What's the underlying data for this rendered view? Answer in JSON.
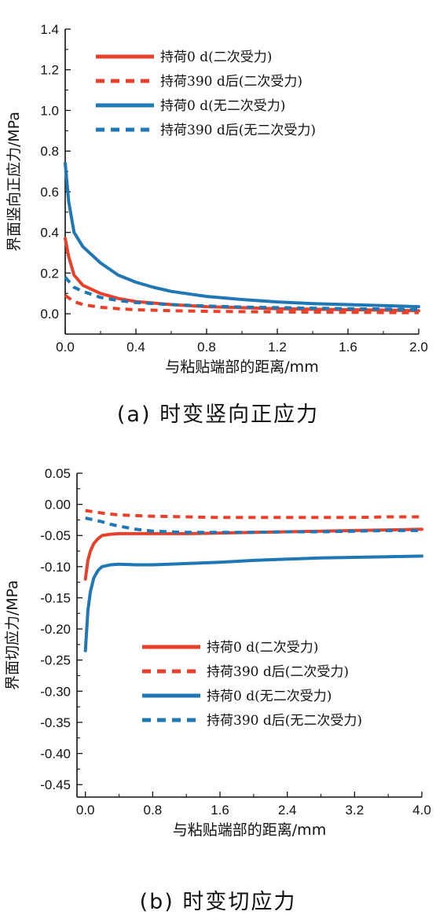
{
  "chart_data": [
    {
      "panel": "a",
      "type": "line",
      "caption": "(a) 时变竖向正应力",
      "xlabel": "与粘贴端部的距离/mm",
      "ylabel": "界面竖向正应力/MPa",
      "xlim": [
        0,
        2.0
      ],
      "ylim": [
        -0.1,
        1.4
      ],
      "xticks": [
        "0.0",
        "0.4",
        "0.8",
        "1.2",
        "1.6",
        "2.0"
      ],
      "yticks": [
        "0.0",
        "0.2",
        "0.4",
        "0.6",
        "0.8",
        "1.0",
        "1.2",
        "1.4"
      ],
      "grid": false,
      "legend_position": "top-right",
      "series": [
        {
          "name": "持荷0 d(二次受力)",
          "color": "#e8402a",
          "dash": "solid",
          "x": [
            0.0,
            0.02,
            0.05,
            0.1,
            0.2,
            0.3,
            0.4,
            0.6,
            0.8,
            1.0,
            1.2,
            1.4,
            1.6,
            1.8,
            2.0
          ],
          "y": [
            0.37,
            0.28,
            0.19,
            0.14,
            0.1,
            0.075,
            0.06,
            0.045,
            0.035,
            0.03,
            0.025,
            0.022,
            0.02,
            0.018,
            0.015
          ]
        },
        {
          "name": "持荷390 d后(二次受力)",
          "color": "#e8402a",
          "dash": "dashed",
          "x": [
            0.0,
            0.05,
            0.1,
            0.2,
            0.3,
            0.4,
            0.6,
            0.8,
            1.0,
            1.2,
            1.4,
            1.6,
            1.8,
            2.0
          ],
          "y": [
            0.09,
            0.06,
            0.045,
            0.032,
            0.025,
            0.02,
            0.015,
            0.012,
            0.01,
            0.009,
            0.008,
            0.007,
            0.006,
            0.005
          ]
        },
        {
          "name": "持荷0 d(无二次受力)",
          "color": "#1f77b4",
          "dash": "solid",
          "x": [
            0.0,
            0.02,
            0.05,
            0.1,
            0.2,
            0.3,
            0.4,
            0.5,
            0.6,
            0.8,
            1.0,
            1.2,
            1.4,
            1.6,
            1.8,
            2.0
          ],
          "y": [
            0.74,
            0.55,
            0.4,
            0.33,
            0.25,
            0.19,
            0.155,
            0.13,
            0.11,
            0.085,
            0.07,
            0.058,
            0.05,
            0.045,
            0.04,
            0.035
          ]
        },
        {
          "name": "持荷390 d后(无二次受力)",
          "color": "#1f77b4",
          "dash": "dashed",
          "x": [
            0.0,
            0.05,
            0.1,
            0.2,
            0.3,
            0.4,
            0.6,
            0.8,
            1.0,
            1.2,
            1.4,
            1.6,
            1.8,
            2.0
          ],
          "y": [
            0.18,
            0.13,
            0.11,
            0.08,
            0.065,
            0.055,
            0.045,
            0.038,
            0.033,
            0.03,
            0.027,
            0.025,
            0.023,
            0.02
          ]
        }
      ]
    },
    {
      "panel": "b",
      "type": "line",
      "caption": "(b) 时变切应力",
      "xlabel": "与粘贴端部的距离/mm",
      "ylabel": "界面切应力/MPa",
      "xlim": [
        -0.1,
        4.0
      ],
      "ylim": [
        -0.47,
        0.05
      ],
      "xticks": [
        "0.0",
        "0.8",
        "1.6",
        "2.4",
        "3.2",
        "4.0"
      ],
      "yticks": [
        "0.05",
        "0.00",
        "-0.05",
        "-0.10",
        "-0.15",
        "-0.20",
        "-0.25",
        "-0.30",
        "-0.35",
        "-0.40",
        "-0.45"
      ],
      "grid": false,
      "legend_position": "center-right",
      "series": [
        {
          "name": "持荷0 d(二次受力)",
          "color": "#e8402a",
          "dash": "solid",
          "x": [
            0.0,
            0.03,
            0.06,
            0.1,
            0.15,
            0.2,
            0.3,
            0.4,
            0.6,
            0.8,
            1.2,
            1.6,
            2.0,
            2.4,
            2.8,
            3.2,
            3.6,
            4.0
          ],
          "y": [
            -0.12,
            -0.09,
            -0.075,
            -0.063,
            -0.055,
            -0.05,
            -0.048,
            -0.047,
            -0.047,
            -0.047,
            -0.047,
            -0.046,
            -0.045,
            -0.044,
            -0.043,
            -0.042,
            -0.041,
            -0.04
          ]
        },
        {
          "name": "持荷390 d后(二次受力)",
          "color": "#e8402a",
          "dash": "dashed",
          "x": [
            0.0,
            0.1,
            0.2,
            0.4,
            0.6,
            0.8,
            1.2,
            1.6,
            2.0,
            2.4,
            2.8,
            3.2,
            3.6,
            4.0
          ],
          "y": [
            -0.01,
            -0.012,
            -0.014,
            -0.017,
            -0.018,
            -0.019,
            -0.02,
            -0.021,
            -0.021,
            -0.021,
            -0.021,
            -0.021,
            -0.02,
            -0.02
          ]
        },
        {
          "name": "持荷0 d(无二次受力)",
          "color": "#1f77b4",
          "dash": "solid",
          "x": [
            0.0,
            0.03,
            0.06,
            0.1,
            0.15,
            0.2,
            0.3,
            0.4,
            0.6,
            0.8,
            1.0,
            1.2,
            1.6,
            2.0,
            2.4,
            2.8,
            3.2,
            3.6,
            4.0
          ],
          "y": [
            -0.235,
            -0.17,
            -0.14,
            -0.118,
            -0.106,
            -0.1,
            -0.097,
            -0.096,
            -0.097,
            -0.097,
            -0.096,
            -0.095,
            -0.093,
            -0.09,
            -0.088,
            -0.086,
            -0.085,
            -0.084,
            -0.083
          ]
        },
        {
          "name": "持荷390 d后(无二次受力)",
          "color": "#1f77b4",
          "dash": "dashed",
          "x": [
            0.0,
            0.1,
            0.2,
            0.3,
            0.4,
            0.6,
            0.8,
            1.0,
            1.2,
            1.6,
            2.0,
            2.4,
            2.8,
            3.2,
            3.6,
            4.0
          ],
          "y": [
            -0.022,
            -0.025,
            -0.028,
            -0.032,
            -0.035,
            -0.04,
            -0.043,
            -0.044,
            -0.045,
            -0.045,
            -0.045,
            -0.044,
            -0.044,
            -0.043,
            -0.042,
            -0.042
          ]
        }
      ]
    }
  ]
}
